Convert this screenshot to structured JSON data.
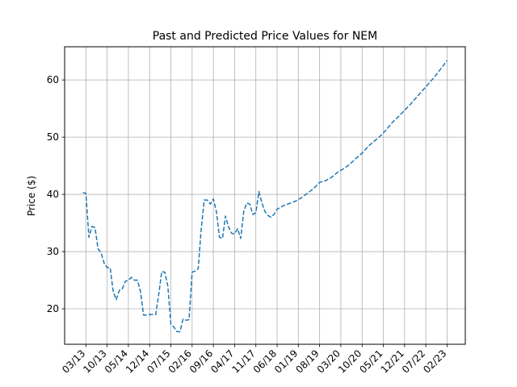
{
  "chart_data": {
    "type": "line",
    "title": "Past and Predicted Price Values for NEM",
    "xlabel": "",
    "ylabel": "Price ($)",
    "grid": true,
    "series_color": "#1f77b4",
    "line_style": "dashed",
    "ylim": [
      13.8,
      65.8
    ],
    "yticks": [
      20,
      30,
      40,
      50,
      60
    ],
    "xticks": [
      "03/13",
      "10/13",
      "05/14",
      "12/14",
      "07/15",
      "02/16",
      "09/16",
      "04/17",
      "11/17",
      "06/18",
      "01/19",
      "08/19",
      "03/20",
      "10/20",
      "05/21",
      "12/21",
      "07/22",
      "02/23"
    ],
    "x": [
      "2013-02",
      "2013-03",
      "2013-04",
      "2013-05",
      "2013-06",
      "2013-07",
      "2013-08",
      "2013-09",
      "2013-10",
      "2013-11",
      "2013-12",
      "2014-01",
      "2014-02",
      "2014-03",
      "2014-04",
      "2014-05",
      "2014-06",
      "2014-07",
      "2014-08",
      "2014-09",
      "2014-10",
      "2014-11",
      "2014-12",
      "2015-01",
      "2015-02",
      "2015-03",
      "2015-04",
      "2015-05",
      "2015-06",
      "2015-07",
      "2015-08",
      "2015-09",
      "2015-10",
      "2015-11",
      "2015-12",
      "2016-01",
      "2016-02",
      "2016-03",
      "2016-04",
      "2016-05",
      "2016-06",
      "2016-07",
      "2016-08",
      "2016-09",
      "2016-10",
      "2016-11",
      "2016-12",
      "2017-01",
      "2017-02",
      "2017-03",
      "2017-04",
      "2017-05",
      "2017-06",
      "2017-07",
      "2017-08",
      "2017-09",
      "2017-10",
      "2017-11",
      "2017-12",
      "2018-01",
      "2018-02",
      "2018-03",
      "2018-04",
      "2018-05",
      "2018-06",
      "2018-08",
      "2018-10",
      "2018-12",
      "2019-02",
      "2019-04",
      "2019-06",
      "2019-08",
      "2019-10",
      "2019-12",
      "2020-02",
      "2020-04",
      "2020-06",
      "2020-08",
      "2020-10",
      "2020-12",
      "2021-02",
      "2021-04",
      "2021-06",
      "2021-08",
      "2021-10",
      "2021-12",
      "2022-02",
      "2022-04",
      "2022-06",
      "2022-08",
      "2022-10",
      "2022-12",
      "2023-02"
    ],
    "values": [
      40.3,
      40.2,
      32.5,
      34.4,
      34.2,
      30.5,
      29.8,
      28.0,
      27.2,
      27.2,
      23.0,
      21.6,
      23.2,
      23.5,
      24.8,
      25.0,
      25.5,
      25.0,
      25.0,
      23.0,
      18.9,
      18.9,
      19.0,
      19.0,
      19.0,
      22.5,
      26.5,
      26.4,
      24.0,
      17.3,
      16.8,
      16.0,
      16.0,
      18.2,
      18.0,
      18.1,
      26.4,
      26.6,
      27.0,
      34.0,
      39.0,
      39.0,
      38.3,
      39.2,
      37.0,
      32.5,
      32.3,
      36.2,
      34.3,
      33.2,
      33.1,
      34.0,
      32.3,
      37.0,
      38.5,
      38.3,
      36.5,
      36.8,
      40.5,
      38.5,
      37.0,
      36.3,
      36.0,
      36.5,
      37.4,
      38.0,
      38.4,
      38.8,
      39.4,
      40.2,
      41.0,
      42.1,
      42.4,
      43.0,
      43.9,
      44.5,
      45.3,
      46.3,
      47.2,
      48.4,
      49.3,
      50.2,
      51.3,
      52.6,
      53.6,
      54.7,
      55.8,
      57.0,
      58.2,
      59.4,
      60.6,
      62.0,
      63.4
    ]
  }
}
